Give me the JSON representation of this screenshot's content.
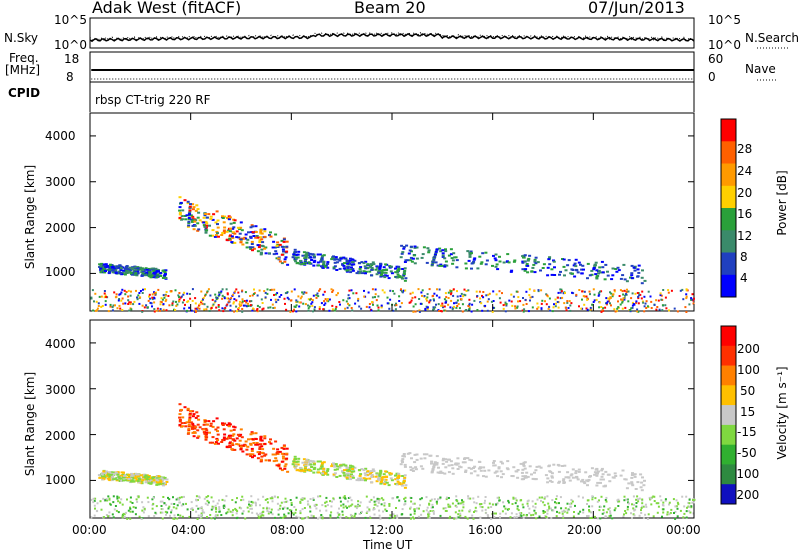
{
  "header": {
    "left": "Adak West (fitACF)",
    "center": "Beam 20",
    "right": "07/Jun/2013"
  },
  "status": {
    "nsky_label": "N.Sky",
    "nsky_ticks": [
      "10^5",
      "10^0"
    ],
    "nsearch_label": "N.Search",
    "freq_label": "Freq.",
    "freq_unit": "[MHz]",
    "freq_ticks": [
      "18",
      "8"
    ],
    "nave_label": "Nave",
    "nave_ticks": [
      "60",
      "0"
    ],
    "cpid_label": "CPID",
    "cpid_text": "rbsp CT-trig 220 RF"
  },
  "x_axis": {
    "label": "Time UT",
    "tick_labels": [
      "00:00",
      "04:00",
      "08:00",
      "12:00",
      "16:00",
      "20:00",
      "00:00"
    ],
    "tick_hours": [
      0,
      4,
      8,
      12,
      16,
      20,
      24
    ],
    "range_hours": [
      0,
      24
    ]
  },
  "chart_data": [
    {
      "type": "heatmap",
      "ylabel": "Slant Range [km]",
      "ylim": [
        180,
        4500
      ],
      "y_tick_labels": [
        "1000",
        "2000",
        "3000",
        "4000"
      ],
      "y_ticks": [
        1000,
        2000,
        3000,
        4000
      ],
      "colorbar": {
        "label": "Power [dB]",
        "range": [
          0,
          32
        ],
        "tick_labels": [
          "4",
          "8",
          "12",
          "16",
          "20",
          "24",
          "28"
        ],
        "ticks": [
          4,
          8,
          12,
          16,
          20,
          24,
          28
        ],
        "colors": [
          "#0000ff",
          "#2040c0",
          "#3a8a6a",
          "#2aa03a",
          "#ffd000",
          "#ff9a00",
          "#ff6000",
          "#ff0000"
        ]
      }
    },
    {
      "type": "heatmap",
      "ylabel": "Slant Range [km]",
      "ylim": [
        180,
        4500
      ],
      "y_tick_labels": [
        "1000",
        "2000",
        "3000",
        "4000"
      ],
      "y_ticks": [
        1000,
        2000,
        3000,
        4000
      ],
      "colorbar": {
        "label": "Velocity [m s⁻¹]",
        "range": [
          -250,
          250
        ],
        "tick_labels": [
          "200",
          "100",
          "50",
          "15",
          "-15",
          "-50",
          "-100",
          "-200"
        ],
        "colors": [
          "#1010c0",
          "#2e8a40",
          "#30b030",
          "#7fd840",
          "#c8c8c8",
          "#ffc000",
          "#ff8000",
          "#ff3000",
          "#ff0000"
        ]
      }
    }
  ]
}
